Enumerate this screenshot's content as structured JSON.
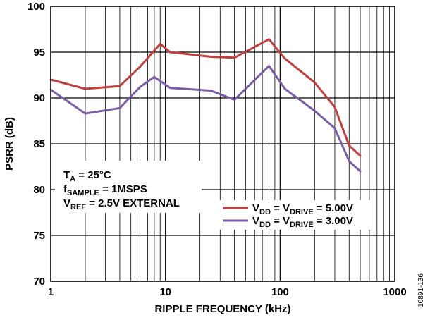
{
  "chart_data": {
    "type": "line",
    "xlabel": "RIPPLE FREQUENCY (kHz)",
    "ylabel": "PSRR (dB)",
    "x_scale": "log",
    "xlim": [
      1,
      1000
    ],
    "ylim": [
      70,
      100
    ],
    "x_ticks": [
      1,
      10,
      100,
      1000
    ],
    "x_tick_labels": [
      "1",
      "10",
      "100",
      "1000"
    ],
    "y_ticks": [
      70,
      75,
      80,
      85,
      90,
      95,
      100
    ],
    "y_tick_labels": [
      "70",
      "75",
      "80",
      "85",
      "90",
      "95",
      "100"
    ],
    "grid": true,
    "legend_position": "lower-right",
    "series": [
      {
        "name": "V_DD = V_DRIVE = 5.00V",
        "color": "#c0403f",
        "x": [
          1,
          2,
          4,
          6,
          9,
          11,
          25,
          40,
          80,
          110,
          200,
          300,
          400,
          500
        ],
        "y": [
          92.0,
          91.0,
          91.3,
          93.4,
          95.9,
          95.0,
          94.5,
          94.4,
          96.4,
          94.3,
          91.7,
          89.0,
          84.8,
          83.7
        ]
      },
      {
        "name": "V_DD = V_DRIVE = 3.00V",
        "color": "#7b5ea7",
        "x": [
          1,
          2,
          4,
          6,
          8,
          11,
          25,
          40,
          80,
          110,
          200,
          300,
          400,
          500
        ],
        "y": [
          90.9,
          88.3,
          88.9,
          91.2,
          92.3,
          91.1,
          90.8,
          89.8,
          93.5,
          91.0,
          88.6,
          86.7,
          83.1,
          82.0
        ]
      }
    ]
  },
  "annotations": {
    "ta_main": "T",
    "ta_sub": "A",
    "ta_value": " = 25°C",
    "fs_main": "f",
    "fs_sub": "SAMPLE",
    "fs_value": " = 1MSPS",
    "vref_main": "V",
    "vref_sub": "REF",
    "vref_value": " = 2.5V EXTERNAL"
  },
  "legend": {
    "s1_v1": "V",
    "s1_sub1": "DD",
    "s1_mid": " = V",
    "s1_sub2": "DRIVE",
    "s1_value": " = 5.00V",
    "s2_v1": "V",
    "s2_sub1": "DD",
    "s2_mid": " = V",
    "s2_sub2": "DRIVE",
    "s2_value": " = 3.00V"
  },
  "figure_id": "10891-136"
}
